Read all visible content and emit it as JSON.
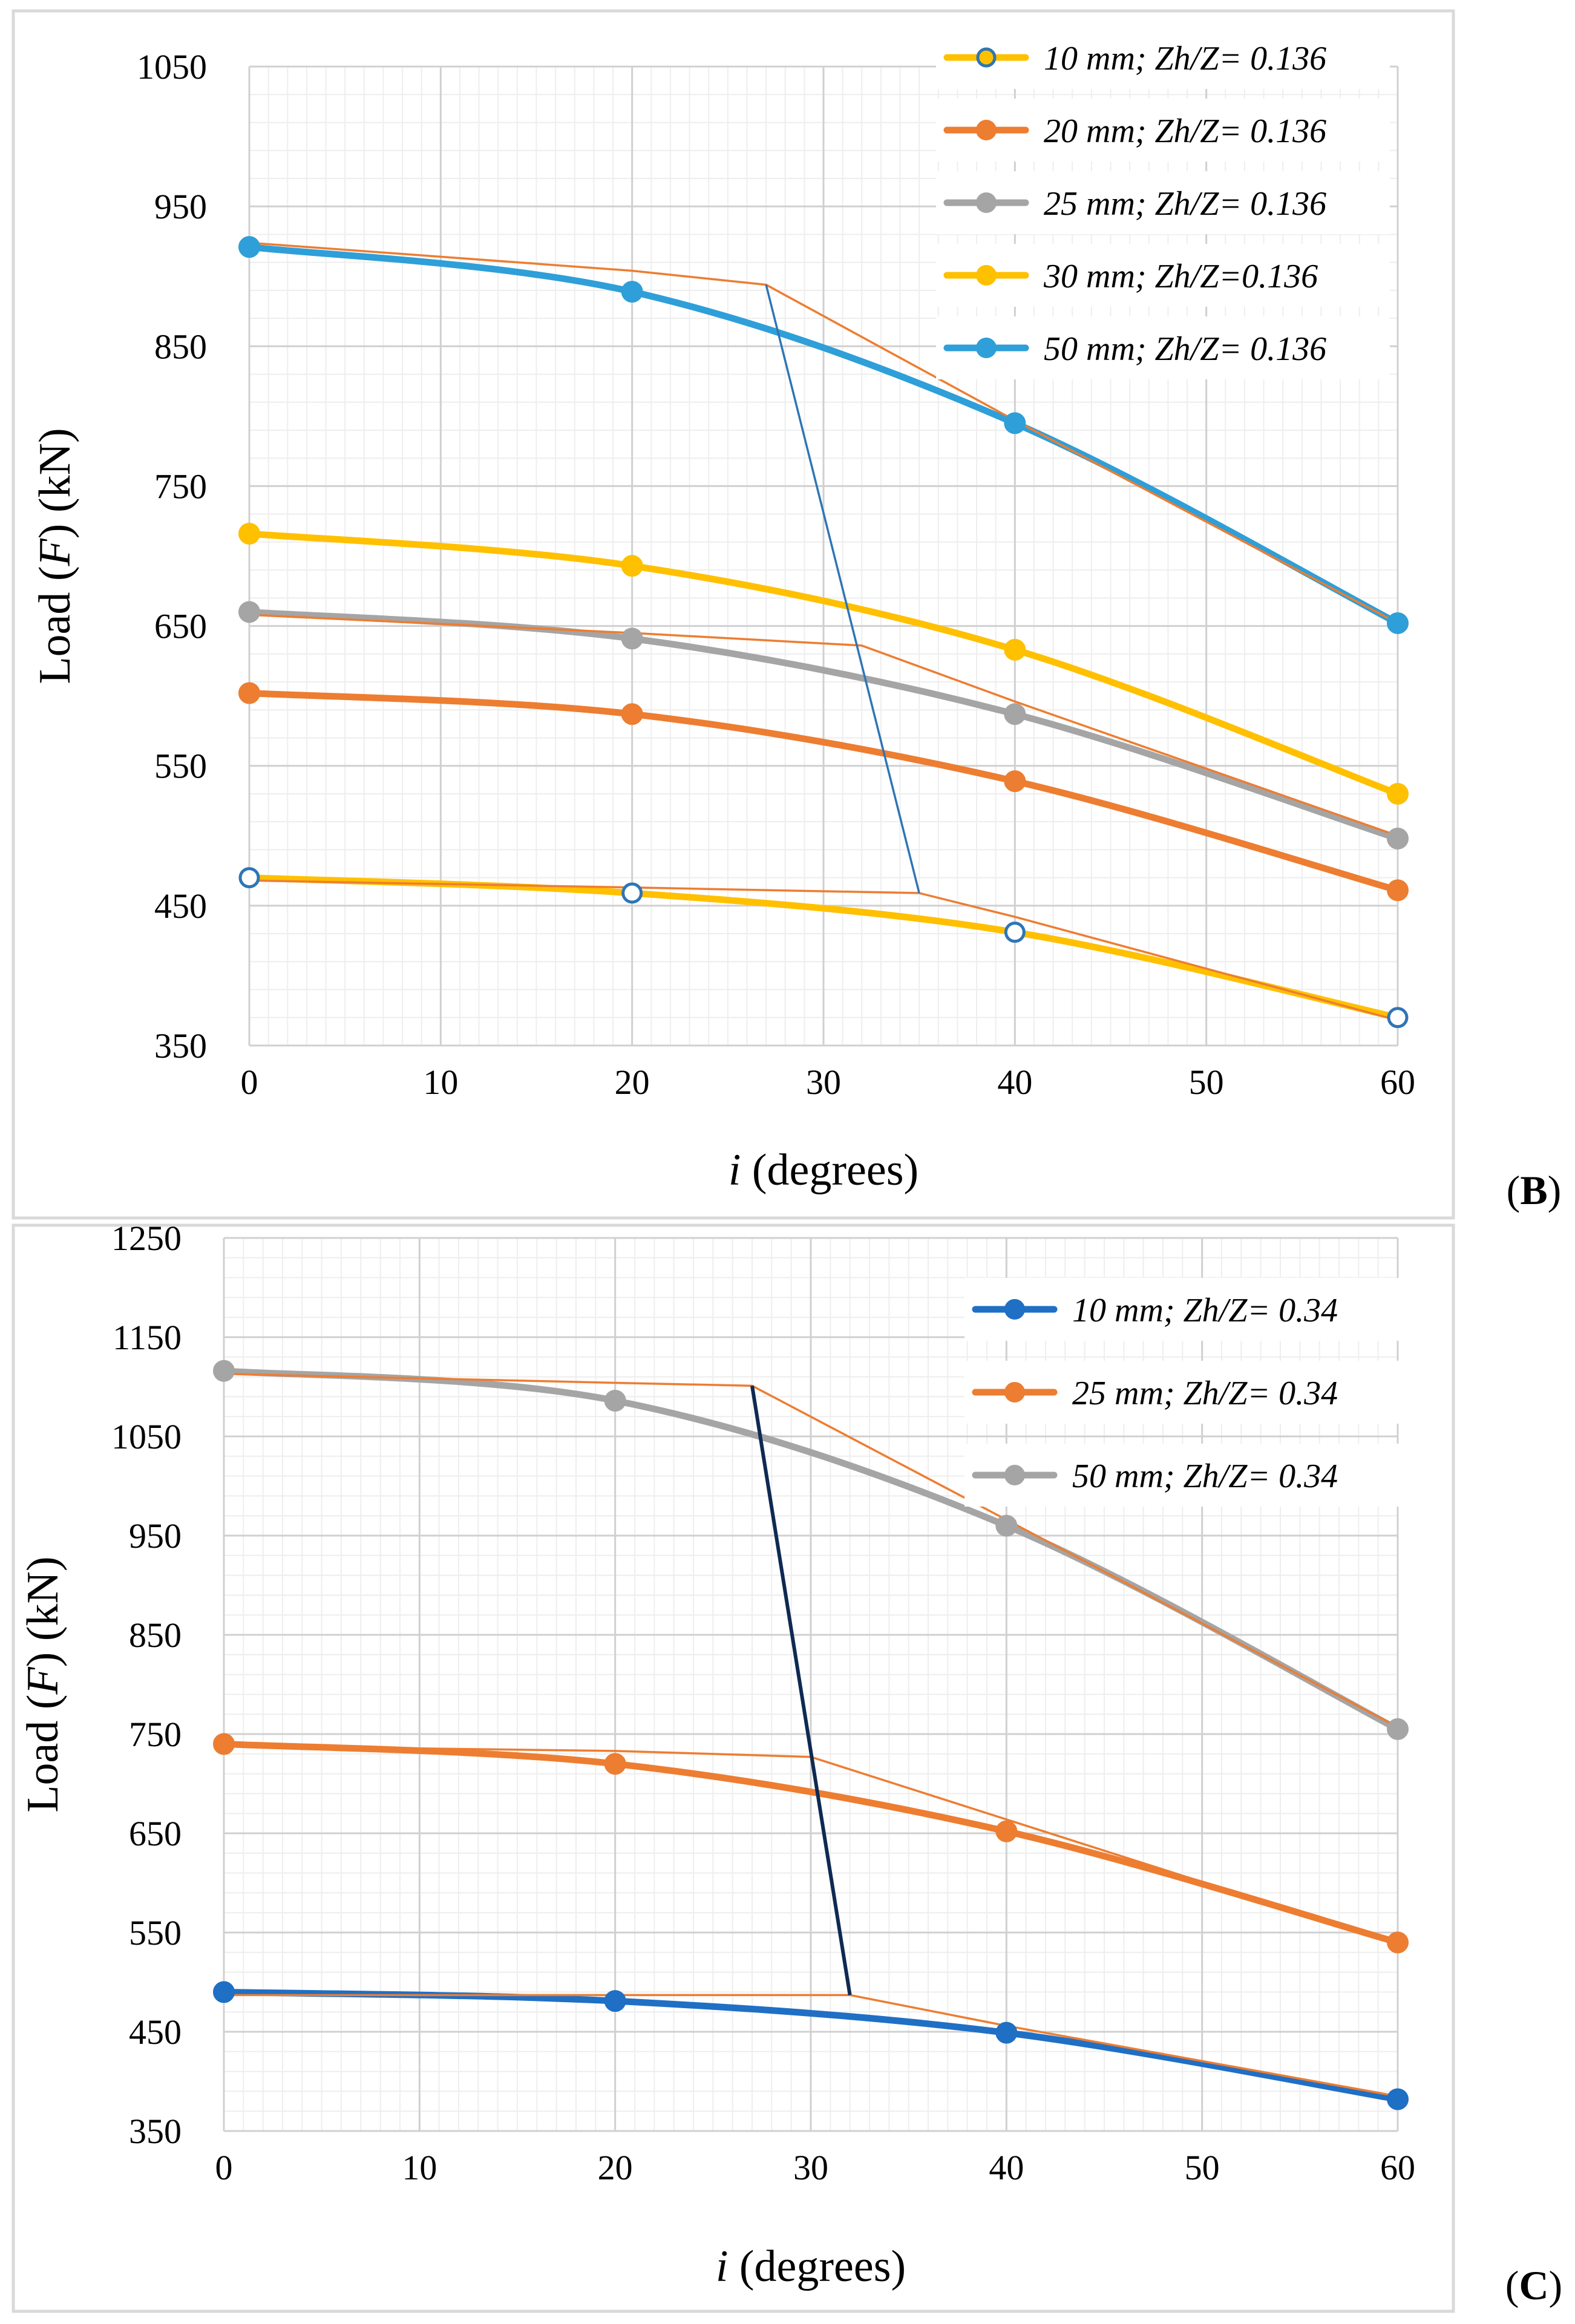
{
  "chart_data": [
    {
      "type": "line",
      "panel": "B",
      "xlabel_italic": "i",
      "xlabel_rest": " (degrees)",
      "ylabel_pre": "Load (",
      "ylabel_italic": "F",
      "ylabel_post": ") (kN)",
      "xlim": [
        0,
        60
      ],
      "ylim": [
        350,
        1050
      ],
      "xticks": [
        0,
        10,
        20,
        30,
        40,
        50,
        60
      ],
      "yticks": [
        350,
        450,
        550,
        650,
        750,
        850,
        950,
        1050
      ],
      "grid": true,
      "legend_position": "top-right",
      "x": [
        0,
        20,
        40,
        60
      ],
      "series": [
        {
          "name": "10 mm; Zh/Z= 0.136",
          "color": "#FFC000",
          "marker": "hollow",
          "values": [
            470,
            459,
            431,
            370
          ]
        },
        {
          "name": "20 mm; Zh/Z= 0.136",
          "color": "#ED7D31",
          "marker": "filled",
          "values": [
            602,
            587,
            539,
            461
          ]
        },
        {
          "name": "25 mm; Zh/Z= 0.136",
          "color": "#A5A5A5",
          "marker": "filled",
          "values": [
            660,
            641,
            587,
            498
          ]
        },
        {
          "name": "30 mm; Zh/Z=0.136",
          "color": "#FFC000",
          "marker": "filled",
          "values": [
            716,
            693,
            633,
            530
          ]
        },
        {
          "name": "50 mm; Zh/Z= 0.136",
          "color": "#2E9FD8",
          "marker": "filled",
          "values": [
            921,
            889,
            795,
            652
          ]
        }
      ],
      "annotation_lines": [
        {
          "color": "#ED7D31",
          "points": [
            [
              0,
              924
            ],
            [
              20,
              904
            ],
            [
              27,
              894
            ],
            [
              40,
              797
            ],
            [
              60,
              652
            ]
          ]
        },
        {
          "color": "#ED7D31",
          "points": [
            [
              0,
              658
            ],
            [
              20,
              645
            ],
            [
              32,
              636
            ],
            [
              40,
              596
            ],
            [
              60,
              500
            ]
          ]
        },
        {
          "color": "#ED7D31",
          "points": [
            [
              0,
              468
            ],
            [
              20,
              463
            ],
            [
              35,
              459
            ],
            [
              40,
              442
            ],
            [
              60,
              368
            ]
          ]
        },
        {
          "color": "#2E75B6",
          "points": [
            [
              27,
              894
            ],
            [
              35,
              459
            ]
          ]
        }
      ]
    },
    {
      "type": "line",
      "panel": "C",
      "xlabel_italic": "i",
      "xlabel_rest": " (degrees)",
      "ylabel_pre": "Load (",
      "ylabel_italic": "F",
      "ylabel_post": ") (kN)",
      "xlim": [
        0,
        60
      ],
      "ylim": [
        350,
        1250
      ],
      "xticks": [
        0,
        10,
        20,
        30,
        40,
        50,
        60
      ],
      "yticks": [
        350,
        450,
        550,
        650,
        750,
        850,
        950,
        1050,
        1150,
        1250
      ],
      "grid": true,
      "legend_position": "top-right",
      "x": [
        0,
        20,
        40,
        60
      ],
      "series": [
        {
          "name": "10 mm; Zh/Z= 0.34",
          "color": "#1F6FC5",
          "marker": "filled",
          "values": [
            490,
            481,
            449,
            382
          ]
        },
        {
          "name": "25 mm; Zh/Z= 0.34",
          "color": "#ED7D31",
          "marker": "filled",
          "values": [
            740,
            720,
            652,
            540
          ]
        },
        {
          "name": "50 mm; Zh/Z= 0.34",
          "color": "#A5A5A5",
          "marker": "filled",
          "values": [
            1116,
            1086,
            960,
            755
          ]
        }
      ],
      "annotation_lines": [
        {
          "color": "#ED7D31",
          "points": [
            [
              0,
              1113
            ],
            [
              20,
              1104
            ],
            [
              27,
              1101
            ],
            [
              40,
              966
            ],
            [
              60,
              757
            ]
          ]
        },
        {
          "color": "#ED7D31",
          "points": [
            [
              0,
              738
            ],
            [
              20,
              733
            ],
            [
              30,
              727
            ],
            [
              40,
              664
            ],
            [
              60,
              538
            ]
          ]
        },
        {
          "color": "#ED7D31",
          "points": [
            [
              0,
              487
            ],
            [
              20,
              487
            ],
            [
              32,
              487
            ],
            [
              40,
              456
            ],
            [
              60,
              385
            ]
          ]
        },
        {
          "color": "#0E2A52",
          "points": [
            [
              27,
              1101
            ],
            [
              32,
              487
            ]
          ]
        }
      ]
    }
  ],
  "panel_labels": {
    "b_open": "(",
    "b_letter": "B",
    "b_close": ")",
    "c_open": "(",
    "c_letter": "C",
    "c_close": ")"
  }
}
